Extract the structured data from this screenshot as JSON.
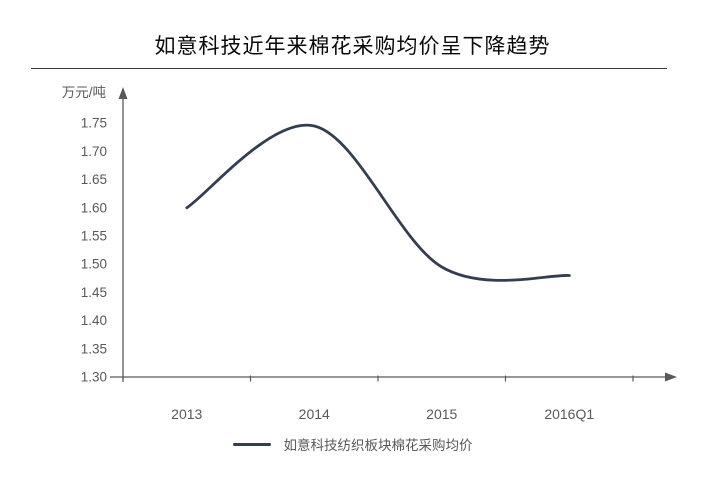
{
  "page": {
    "title": "如意科技近年来棉花采购均价呈下降趋势"
  },
  "chart_data": {
    "type": "line",
    "title": "如意科技近年来棉花采购均价呈下降趋势",
    "unit_label": "万元/吨",
    "categories": [
      "2013",
      "2014",
      "2015",
      "2016Q1"
    ],
    "series": [
      {
        "name": "如意科技纺织板块棉花采购均价",
        "values": [
          1.6,
          1.745,
          1.495,
          1.48
        ]
      }
    ],
    "ylim": [
      1.3,
      1.75
    ],
    "ytick_step": 0.05,
    "ytick_labels": [
      "1.30",
      "1.35",
      "1.40",
      "1.45",
      "1.50",
      "1.55",
      "1.60",
      "1.65",
      "1.70",
      "1.75"
    ],
    "grid": false,
    "smooth": true,
    "legend_position": "bottom",
    "line_color": "#333F50",
    "axis_color": "#595959",
    "label_color": "#595959"
  },
  "legend": {
    "label": "如意科技纺织板块棉花采购均价"
  }
}
